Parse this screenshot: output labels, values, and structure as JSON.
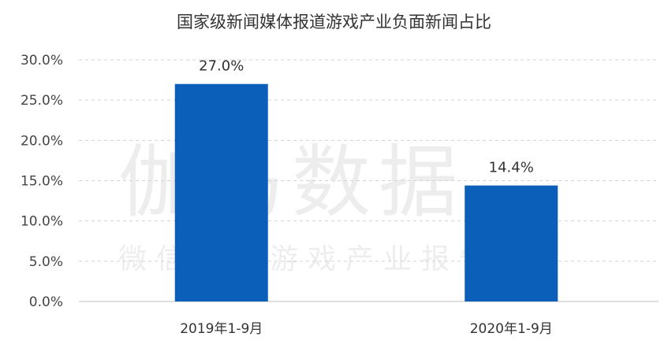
{
  "watermark": {
    "main": "伽马数据",
    "sub": "微信号：游戏产业报告"
  },
  "chart_data": {
    "type": "bar",
    "title": "国家级新闻媒体报道游戏产业负面新闻占比",
    "categories": [
      "2019年1-9月",
      "2020年1-9月"
    ],
    "values": [
      27.0,
      14.4
    ],
    "data_labels": [
      "27.0%",
      "14.4%"
    ],
    "ylim": [
      0,
      30
    ],
    "yticks": [
      0,
      5,
      10,
      15,
      20,
      25,
      30
    ],
    "ytick_labels": [
      "0.0%",
      "5.0%",
      "10.0%",
      "15.0%",
      "20.0%",
      "25.0%",
      "30.0%"
    ],
    "grid": true,
    "bar_color": "#0b5fb8"
  }
}
